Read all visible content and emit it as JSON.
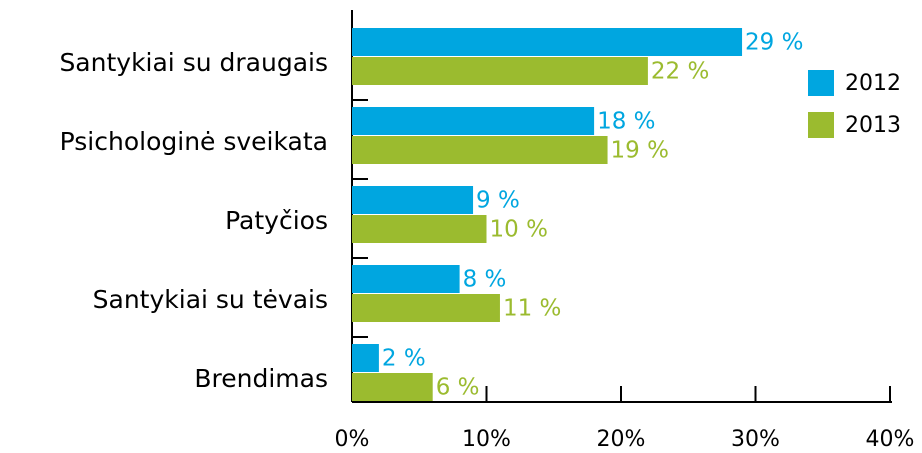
{
  "chart_data": {
    "type": "bar",
    "orientation": "horizontal",
    "categories": [
      "Santykiai su draugais",
      "Psichologinė sveikata",
      "Patyčios",
      "Santykiai su tėvais",
      "Brendimas"
    ],
    "series": [
      {
        "name": "2012",
        "color": "#00a6e0",
        "values": [
          29,
          18,
          9,
          8,
          2
        ],
        "value_labels": [
          "29 %",
          "18 %",
          "9 %",
          "8 %",
          "2 %"
        ]
      },
      {
        "name": "2013",
        "color": "#9bbb2f",
        "values": [
          22,
          19,
          10,
          11,
          6
        ],
        "value_labels": [
          "22 %",
          "19 %",
          "10 %",
          "11 %",
          "6 %"
        ]
      }
    ],
    "xlim": [
      0,
      40
    ],
    "xticks": [
      {
        "value": 0,
        "label": "0%"
      },
      {
        "value": 10,
        "label": "10%"
      },
      {
        "value": 20,
        "label": "20%"
      },
      {
        "value": 30,
        "label": "30%"
      },
      {
        "value": 40,
        "label": "40%"
      }
    ],
    "legend": "right"
  }
}
